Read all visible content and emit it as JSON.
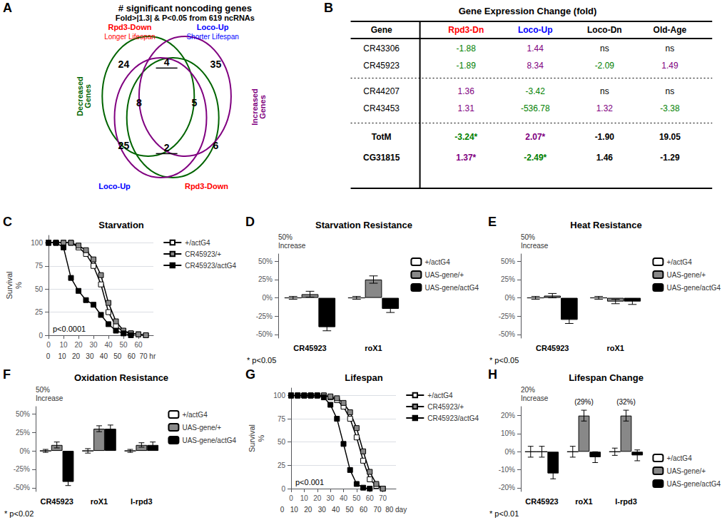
{
  "chart_data": [
    {
      "type": "venn",
      "panel": "A",
      "title": "# significant noncoding genes",
      "subtitle": "Fold>|1.3| & P<0.05 from 619 ncRNAs",
      "top_labels": [
        {
          "name": "Rpd3-Down",
          "note": "Longer Lifespan",
          "color": "red"
        },
        {
          "name": "Loco-Up",
          "note": "Shorter Lifespan",
          "color": "blue"
        }
      ],
      "side_labels": [
        {
          "text": "Decreased\nGenes",
          "color": "darkgreen"
        },
        {
          "text": "Increased\nGenes",
          "color": "purple"
        }
      ],
      "bottom_labels": [
        {
          "text": "Loco-Up",
          "color": "blue"
        },
        {
          "text": "Rpd3-Down",
          "color": "red"
        }
      ],
      "values": [
        24,
        4,
        35,
        8,
        5,
        25,
        2,
        6
      ]
    },
    {
      "type": "table",
      "panel": "B",
      "title": "Gene Expression Change (fold)",
      "headers": [
        "Gene",
        "Rpd3-Dn",
        "Loco-Up",
        "Loco-Dn",
        "Old-Age"
      ],
      "header_colors": [
        "black",
        "red",
        "blue",
        "black",
        "black"
      ],
      "rows": [
        [
          "CR43306",
          "-1.88",
          "1.44",
          "ns",
          "ns"
        ],
        [
          "CR45923",
          "-1.89",
          "8.34",
          "-2.09",
          "1.49"
        ],
        [
          "CR44207",
          "1.36",
          "-3.42",
          "ns",
          "ns"
        ],
        [
          "CR43453",
          "1.31",
          "-536.78",
          "1.32",
          "-3.38"
        ],
        [
          "TotM",
          "-3.24*",
          "2.07*",
          "-1.90",
          "19.05"
        ],
        [
          "CG31815",
          "1.37*",
          "-2.49*",
          "1.46",
          "-1.29"
        ]
      ],
      "row_colors": [
        [
          "black",
          "green",
          "purple",
          "black",
          "black"
        ],
        [
          "black",
          "green",
          "purple",
          "green",
          "purple"
        ],
        [
          "black",
          "purple",
          "green",
          "black",
          "black"
        ],
        [
          "black",
          "purple",
          "green",
          "purple",
          "green"
        ],
        [
          "black",
          "green",
          "purple",
          "black",
          "black"
        ],
        [
          "black",
          "purple",
          "green",
          "black",
          "black"
        ]
      ]
    },
    {
      "type": "line",
      "panel": "C",
      "title": "Starvation",
      "xlabel": "0    10   20   30   40   50   60  70 hr",
      "ylabel": "Survival\n%",
      "xlim": [
        0,
        70
      ],
      "xticks": [
        0,
        10,
        20,
        30,
        40,
        50,
        60
      ],
      "ylim": [
        0,
        108
      ],
      "yticks": [
        0,
        25,
        50,
        75,
        100
      ],
      "grid": true,
      "legend": "upper right",
      "marker": "square",
      "annotations": [
        "p<0.0001"
      ],
      "series": [
        {
          "name": "+/actG4",
          "color": "white",
          "x": [
            0,
            5,
            10,
            15,
            20,
            25,
            30,
            35,
            40,
            45,
            50,
            55,
            60,
            65
          ],
          "values": [
            100,
            100,
            100,
            100,
            95,
            88,
            75,
            55,
            25,
            10,
            4,
            2,
            1,
            0
          ]
        },
        {
          "name": "CR45923/+",
          "color": "#888888",
          "x": [
            0,
            5,
            10,
            15,
            20,
            25,
            30,
            35,
            40,
            45,
            50,
            55,
            60,
            65
          ],
          "values": [
            100,
            100,
            100,
            100,
            97,
            92,
            82,
            65,
            35,
            15,
            5,
            2,
            1,
            0
          ]
        },
        {
          "name": "CR45923/actG4",
          "color": "black",
          "x": [
            0,
            5,
            10,
            15,
            20,
            25,
            30,
            35,
            40,
            45,
            50,
            55
          ],
          "values": [
            100,
            100,
            95,
            62,
            48,
            38,
            33,
            22,
            12,
            5,
            2,
            0
          ]
        }
      ]
    },
    {
      "type": "bar",
      "panel": "D",
      "title": "Starvation Resistance",
      "ylabel": "50%\nIncrease",
      "categories": [
        "CR45923",
        "roX1"
      ],
      "ylim": [
        -55,
        60
      ],
      "yticks": [
        {
          "value": -50,
          "label": "-50%"
        },
        {
          "value": -25,
          "label": "-25%"
        },
        {
          "value": 0,
          "label": "0%"
        },
        {
          "value": 25,
          "label": "25%"
        },
        {
          "value": 50,
          "label": "50%"
        }
      ],
      "grid": false,
      "legend": "upper right",
      "annotations": [
        "* p<0.05"
      ],
      "series": [
        {
          "name": "+/actG4",
          "color": "white",
          "values": [
            0,
            0
          ],
          "errors": [
            2,
            2
          ]
        },
        {
          "name": "UAS-gene/+",
          "color": "#888888",
          "values": [
            5,
            25
          ],
          "errors": [
            4,
            5
          ]
        },
        {
          "name": "UAS-gene/actG4",
          "color": "black",
          "values": [
            -40,
            -15
          ],
          "errors": [
            5,
            5
          ]
        }
      ]
    },
    {
      "type": "bar",
      "panel": "E",
      "title": "Heat Resistance",
      "ylabel": "50%\nIncrease",
      "categories": [
        "CR45923",
        "roX1"
      ],
      "ylim": [
        -55,
        60
      ],
      "yticks": [
        {
          "value": -50,
          "label": "-50%"
        },
        {
          "value": -25,
          "label": "-25%"
        },
        {
          "value": 0,
          "label": "0%"
        },
        {
          "value": 25,
          "label": "25%"
        },
        {
          "value": 50,
          "label": "50%"
        }
      ],
      "grid": false,
      "legend": "upper right",
      "annotations": [
        "* p<0.05"
      ],
      "series": [
        {
          "name": "+/actG4",
          "color": "white",
          "values": [
            0,
            0
          ],
          "errors": [
            2,
            2
          ]
        },
        {
          "name": "UAS-gene/+",
          "color": "#888888",
          "values": [
            3,
            -5
          ],
          "errors": [
            3,
            3
          ]
        },
        {
          "name": "UAS-gene/actG4",
          "color": "black",
          "values": [
            -30,
            -5
          ],
          "errors": [
            5,
            4
          ]
        }
      ]
    },
    {
      "type": "bar",
      "panel": "F",
      "title": "Oxidation Resistance",
      "ylabel": "50%\nIncrease",
      "categories": [
        "CR45923",
        "roX1",
        "I-rpd3"
      ],
      "ylim": [
        -55,
        60
      ],
      "yticks": [
        {
          "value": -50,
          "label": "-50%"
        },
        {
          "value": -25,
          "label": "-25%"
        },
        {
          "value": 0,
          "label": "0%"
        },
        {
          "value": 25,
          "label": "25%"
        },
        {
          "value": 50,
          "label": "50%"
        }
      ],
      "grid": false,
      "legend": "upper right",
      "annotations": [
        "* p<0.02"
      ],
      "series": [
        {
          "name": "+/actG4",
          "color": "white",
          "values": [
            0,
            0,
            0
          ],
          "errors": [
            2,
            3,
            2
          ]
        },
        {
          "name": "UAS-gene/+",
          "color": "#888888",
          "values": [
            8,
            30,
            8
          ],
          "errors": [
            4,
            4,
            3
          ]
        },
        {
          "name": "UAS-gene/actG4",
          "color": "black",
          "values": [
            -42,
            30,
            8
          ],
          "errors": [
            5,
            5,
            4
          ]
        }
      ]
    },
    {
      "type": "line",
      "panel": "G",
      "title": "Lifespan",
      "xlabel": "0   10   20   30   40   50   60   70  80 day",
      "ylabel": "Survival\n%",
      "xlim": [
        0,
        80
      ],
      "xticks": [
        0,
        10,
        20,
        30,
        40,
        50,
        60,
        70
      ],
      "ylim": [
        0,
        108
      ],
      "yticks": [
        0,
        25,
        50,
        75,
        100
      ],
      "grid": true,
      "legend": "upper right",
      "marker": "square",
      "annotations": [
        "p<0.001"
      ],
      "series": [
        {
          "name": "+/actG4",
          "color": "white",
          "x": [
            0,
            5,
            10,
            15,
            20,
            25,
            30,
            35,
            40,
            45,
            50,
            55,
            60,
            65,
            70
          ],
          "values": [
            100,
            100,
            100,
            100,
            100,
            100,
            98,
            95,
            88,
            75,
            55,
            30,
            10,
            3,
            0
          ]
        },
        {
          "name": "CR45923/+",
          "color": "#888888",
          "x": [
            0,
            5,
            10,
            15,
            20,
            25,
            30,
            35,
            40,
            45,
            50,
            55,
            60,
            65,
            70
          ],
          "values": [
            100,
            100,
            100,
            100,
            100,
            100,
            99,
            97,
            92,
            82,
            65,
            40,
            18,
            5,
            0
          ]
        },
        {
          "name": "CR45923/actG4",
          "color": "black",
          "x": [
            0,
            5,
            10,
            15,
            20,
            25,
            30,
            35,
            40,
            45,
            50,
            55,
            60
          ],
          "values": [
            100,
            100,
            100,
            100,
            100,
            98,
            90,
            75,
            48,
            20,
            5,
            1,
            0
          ]
        }
      ]
    },
    {
      "type": "bar",
      "panel": "H",
      "title": "Lifespan Change",
      "ylabel": "20%\nIncrease",
      "categories": [
        "CR45923",
        "roX1",
        "I-rpd3"
      ],
      "ylim": [
        -22,
        25
      ],
      "yticks": [
        {
          "value": -20,
          "label": "-20%"
        },
        {
          "value": -10,
          "label": "-10%"
        },
        {
          "value": 0,
          "label": "0%"
        },
        {
          "value": 10,
          "label": "10%"
        },
        {
          "value": 20,
          "label": "20%"
        }
      ],
      "grid": false,
      "legend": "lower right",
      "annotations": [
        "* p<0.01",
        {
          "text": "(29%)",
          "category": "roX1",
          "series": "UAS-gene/+"
        },
        {
          "text": "(32%)",
          "category": "I-rpd3",
          "series": "UAS-gene/+"
        }
      ],
      "series": [
        {
          "name": "+/actG4",
          "color": "white",
          "values": [
            0,
            0,
            0
          ],
          "errors": [
            3,
            3,
            2
          ]
        },
        {
          "name": "UAS-gene/+",
          "color": "#888888",
          "values": [
            0,
            20,
            20
          ],
          "errors": [
            3,
            3,
            3
          ]
        },
        {
          "name": "UAS-gene/actG4",
          "color": "black",
          "values": [
            -12,
            -3,
            -2
          ],
          "errors": [
            3,
            3,
            3
          ]
        }
      ]
    }
  ]
}
